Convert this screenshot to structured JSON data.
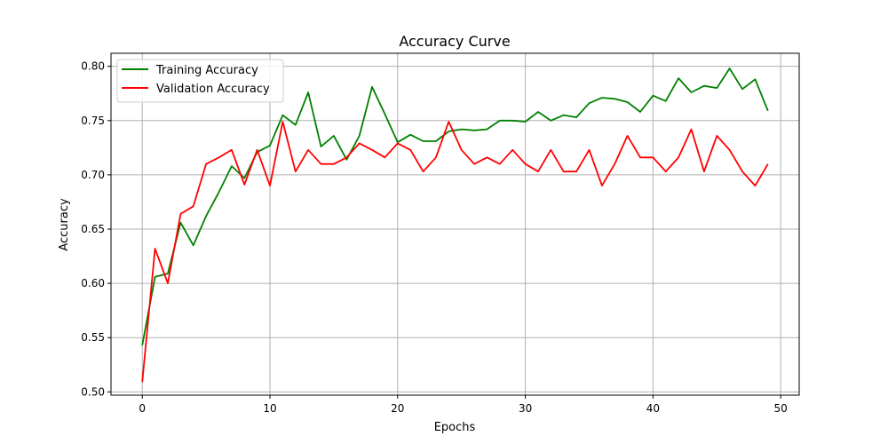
{
  "chart_data": {
    "type": "line",
    "title": "Accuracy Curve",
    "xlabel": "Epochs",
    "ylabel": "Accuracy",
    "xlim": [
      -2.45,
      51.45
    ],
    "ylim": [
      0.497,
      0.812
    ],
    "xticks": [
      0,
      10,
      20,
      30,
      40,
      50
    ],
    "yticks": [
      0.5,
      0.55,
      0.6,
      0.65,
      0.7,
      0.75,
      0.8
    ],
    "grid": true,
    "legend_position": "top-left",
    "x": [
      0,
      1,
      2,
      3,
      4,
      5,
      6,
      7,
      8,
      9,
      10,
      11,
      12,
      13,
      14,
      15,
      16,
      17,
      18,
      19,
      20,
      21,
      22,
      23,
      24,
      25,
      26,
      27,
      28,
      29,
      30,
      31,
      32,
      33,
      34,
      35,
      36,
      37,
      38,
      39,
      40,
      41,
      42,
      43,
      44,
      45,
      46,
      47,
      48,
      49
    ],
    "series": [
      {
        "name": "Training Accuracy",
        "color": "#008000",
        "values": [
          0.543,
          0.606,
          0.609,
          0.656,
          0.635,
          0.662,
          0.684,
          0.708,
          0.697,
          0.721,
          0.727,
          0.755,
          0.746,
          0.776,
          0.726,
          0.736,
          0.714,
          0.736,
          0.781,
          0.756,
          0.73,
          0.737,
          0.731,
          0.731,
          0.74,
          0.742,
          0.741,
          0.742,
          0.75,
          0.75,
          0.749,
          0.758,
          0.75,
          0.755,
          0.753,
          0.766,
          0.771,
          0.77,
          0.767,
          0.758,
          0.773,
          0.768,
          0.789,
          0.776,
          0.782,
          0.78,
          0.798,
          0.779,
          0.788,
          0.759
        ]
      },
      {
        "name": "Validation Accuracy",
        "color": "#ff0000",
        "values": [
          0.509,
          0.632,
          0.6,
          0.664,
          0.671,
          0.71,
          0.716,
          0.723,
          0.691,
          0.723,
          0.69,
          0.749,
          0.703,
          0.723,
          0.71,
          0.71,
          0.716,
          0.729,
          0.723,
          0.716,
          0.729,
          0.723,
          0.703,
          0.716,
          0.749,
          0.723,
          0.71,
          0.716,
          0.71,
          0.723,
          0.71,
          0.703,
          0.723,
          0.703,
          0.703,
          0.723,
          0.69,
          0.71,
          0.736,
          0.716,
          0.716,
          0.703,
          0.716,
          0.742,
          0.703,
          0.736,
          0.723,
          0.703,
          0.69,
          0.71
        ]
      }
    ]
  }
}
